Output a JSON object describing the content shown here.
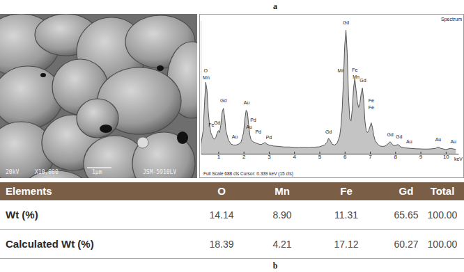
{
  "labels": {
    "top": "a",
    "bottom": "b"
  },
  "micrograph": {
    "voltage": "20kV",
    "magnification": "X10,000",
    "scale": "1μm",
    "instrument": "JSM-5910LV"
  },
  "chart_data": {
    "type": "area",
    "title": "Spectrum",
    "footer": "Full Scale 688 cts Cursor: 0.339 keV (15 cts)",
    "xlabel": "keV",
    "color": "#555555",
    "x": [
      0.3,
      0.4,
      0.45,
      0.5,
      0.55,
      0.6,
      0.65,
      0.7,
      0.75,
      0.8,
      0.85,
      0.9,
      0.95,
      1.0,
      1.05,
      1.1,
      1.15,
      1.2,
      1.25,
      1.3,
      1.4,
      1.5,
      1.6,
      1.7,
      1.8,
      1.9,
      2.0,
      2.05,
      2.1,
      2.15,
      2.2,
      2.25,
      2.3,
      2.4,
      2.5,
      2.6,
      2.7,
      2.8,
      2.85,
      2.9,
      3.0,
      3.2,
      3.4,
      3.6,
      3.8,
      4.0,
      4.2,
      4.4,
      4.6,
      4.8,
      5.0,
      5.2,
      5.3,
      5.36,
      5.42,
      5.5,
      5.6,
      5.7,
      5.8,
      5.85,
      5.9,
      5.95,
      6.0,
      6.05,
      6.1,
      6.15,
      6.2,
      6.25,
      6.3,
      6.35,
      6.4,
      6.45,
      6.5,
      6.55,
      6.6,
      6.65,
      6.7,
      6.75,
      6.8,
      6.85,
      6.9,
      6.95,
      7.0,
      7.05,
      7.1,
      7.15,
      7.2,
      7.3,
      7.4,
      7.5,
      7.6,
      7.7,
      7.8,
      7.85,
      7.9,
      8.0,
      8.1,
      8.15,
      8.2,
      8.4,
      8.6,
      8.8,
      9.0,
      9.2,
      9.4,
      9.6,
      9.7,
      9.8,
      10.0,
      10.2,
      10.4
    ],
    "values": [
      40,
      120,
      250,
      370,
      330,
      220,
      150,
      110,
      95,
      80,
      75,
      85,
      105,
      120,
      110,
      150,
      215,
      235,
      190,
      120,
      70,
      50,
      45,
      45,
      50,
      60,
      110,
      180,
      225,
      215,
      150,
      95,
      70,
      60,
      55,
      50,
      48,
      55,
      58,
      52,
      45,
      40,
      38,
      35,
      35,
      33,
      32,
      33,
      32,
      34,
      36,
      45,
      60,
      80,
      70,
      50,
      45,
      55,
      90,
      140,
      230,
      380,
      560,
      640,
      520,
      300,
      180,
      170,
      230,
      340,
      390,
      330,
      270,
      240,
      260,
      310,
      340,
      280,
      170,
      120,
      110,
      120,
      140,
      160,
      135,
      95,
      70,
      50,
      40,
      38,
      40,
      50,
      62,
      55,
      45,
      42,
      48,
      44,
      36,
      30,
      28,
      26,
      25,
      24,
      25,
      28,
      35,
      28,
      22,
      28,
      22
    ],
    "xlim": [
      0.3,
      10.5
    ],
    "xticks": [
      1,
      2,
      3,
      4,
      5,
      6,
      7,
      8,
      9,
      10
    ],
    "ylim": [
      0,
      688
    ],
    "tick_labels": "x",
    "annotations": [
      {
        "text": "O",
        "x": 0.5,
        "y": 420
      },
      {
        "text": "Mn",
        "x": 0.52,
        "y": 385
      },
      {
        "text": "Fe",
        "x": 0.72,
        "y": 140
      },
      {
        "text": "Gd",
        "x": 0.95,
        "y": 150
      },
      {
        "text": "Gd",
        "x": 1.2,
        "y": 265
      },
      {
        "text": "Au",
        "x": 1.65,
        "y": 80
      },
      {
        "text": "Au",
        "x": 2.12,
        "y": 255
      },
      {
        "text": "Au",
        "x": 2.22,
        "y": 130
      },
      {
        "text": "Pd",
        "x": 2.38,
        "y": 165
      },
      {
        "text": "Pd",
        "x": 2.58,
        "y": 105
      },
      {
        "text": "Pd",
        "x": 3.0,
        "y": 75
      },
      {
        "text": "Gd",
        "x": 5.36,
        "y": 105
      },
      {
        "text": "Mn",
        "x": 5.85,
        "y": 420
      },
      {
        "text": "Gd",
        "x": 6.05,
        "y": 670
      },
      {
        "text": "Fe",
        "x": 6.4,
        "y": 425
      },
      {
        "text": "Mn",
        "x": 6.45,
        "y": 390
      },
      {
        "text": "Gd",
        "x": 6.72,
        "y": 372
      },
      {
        "text": "Fe",
        "x": 7.05,
        "y": 265
      },
      {
        "text": "Fe",
        "x": 7.05,
        "y": 230
      },
      {
        "text": "Gd",
        "x": 7.8,
        "y": 90
      },
      {
        "text": "Gd",
        "x": 8.15,
        "y": 80
      },
      {
        "text": "Au",
        "x": 8.55,
        "y": 55
      },
      {
        "text": "Au",
        "x": 9.7,
        "y": 65
      },
      {
        "text": "Au",
        "x": 10.3,
        "y": 55
      }
    ]
  },
  "table": {
    "header": [
      "Elements",
      "O",
      "Mn",
      "Fe",
      "Gd",
      "Total"
    ],
    "rows": [
      [
        "Wt (%)",
        "14.14",
        "8.90",
        "11.31",
        "65.65",
        "100.00"
      ],
      [
        "Calculated Wt (%)",
        "18.39",
        "4.21",
        "17.12",
        "60.27",
        "100.00"
      ]
    ]
  }
}
